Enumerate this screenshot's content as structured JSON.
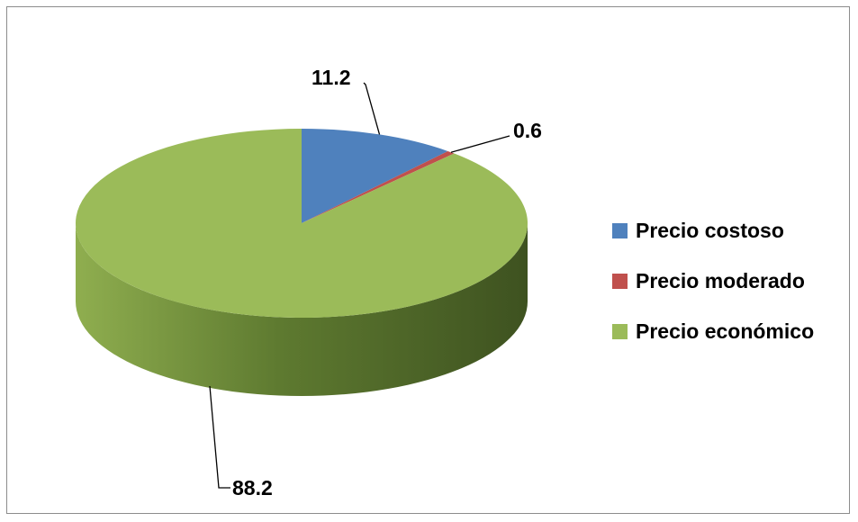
{
  "chart_data": {
    "type": "pie",
    "title": "",
    "categories": [
      "Precio costoso",
      "Precio moderado",
      "Precio económico"
    ],
    "values": [
      11.2,
      0.6,
      88.2
    ],
    "data_labels": [
      "11.2",
      "0.6",
      "88.2"
    ],
    "colors": [
      "#4f81bd",
      "#c0504d",
      "#9bbb59"
    ],
    "side_colors": [
      "#3a5f8c",
      "#8e3b39",
      "#6a8a3a"
    ],
    "legend_position": "right",
    "style": "3d-pie"
  }
}
